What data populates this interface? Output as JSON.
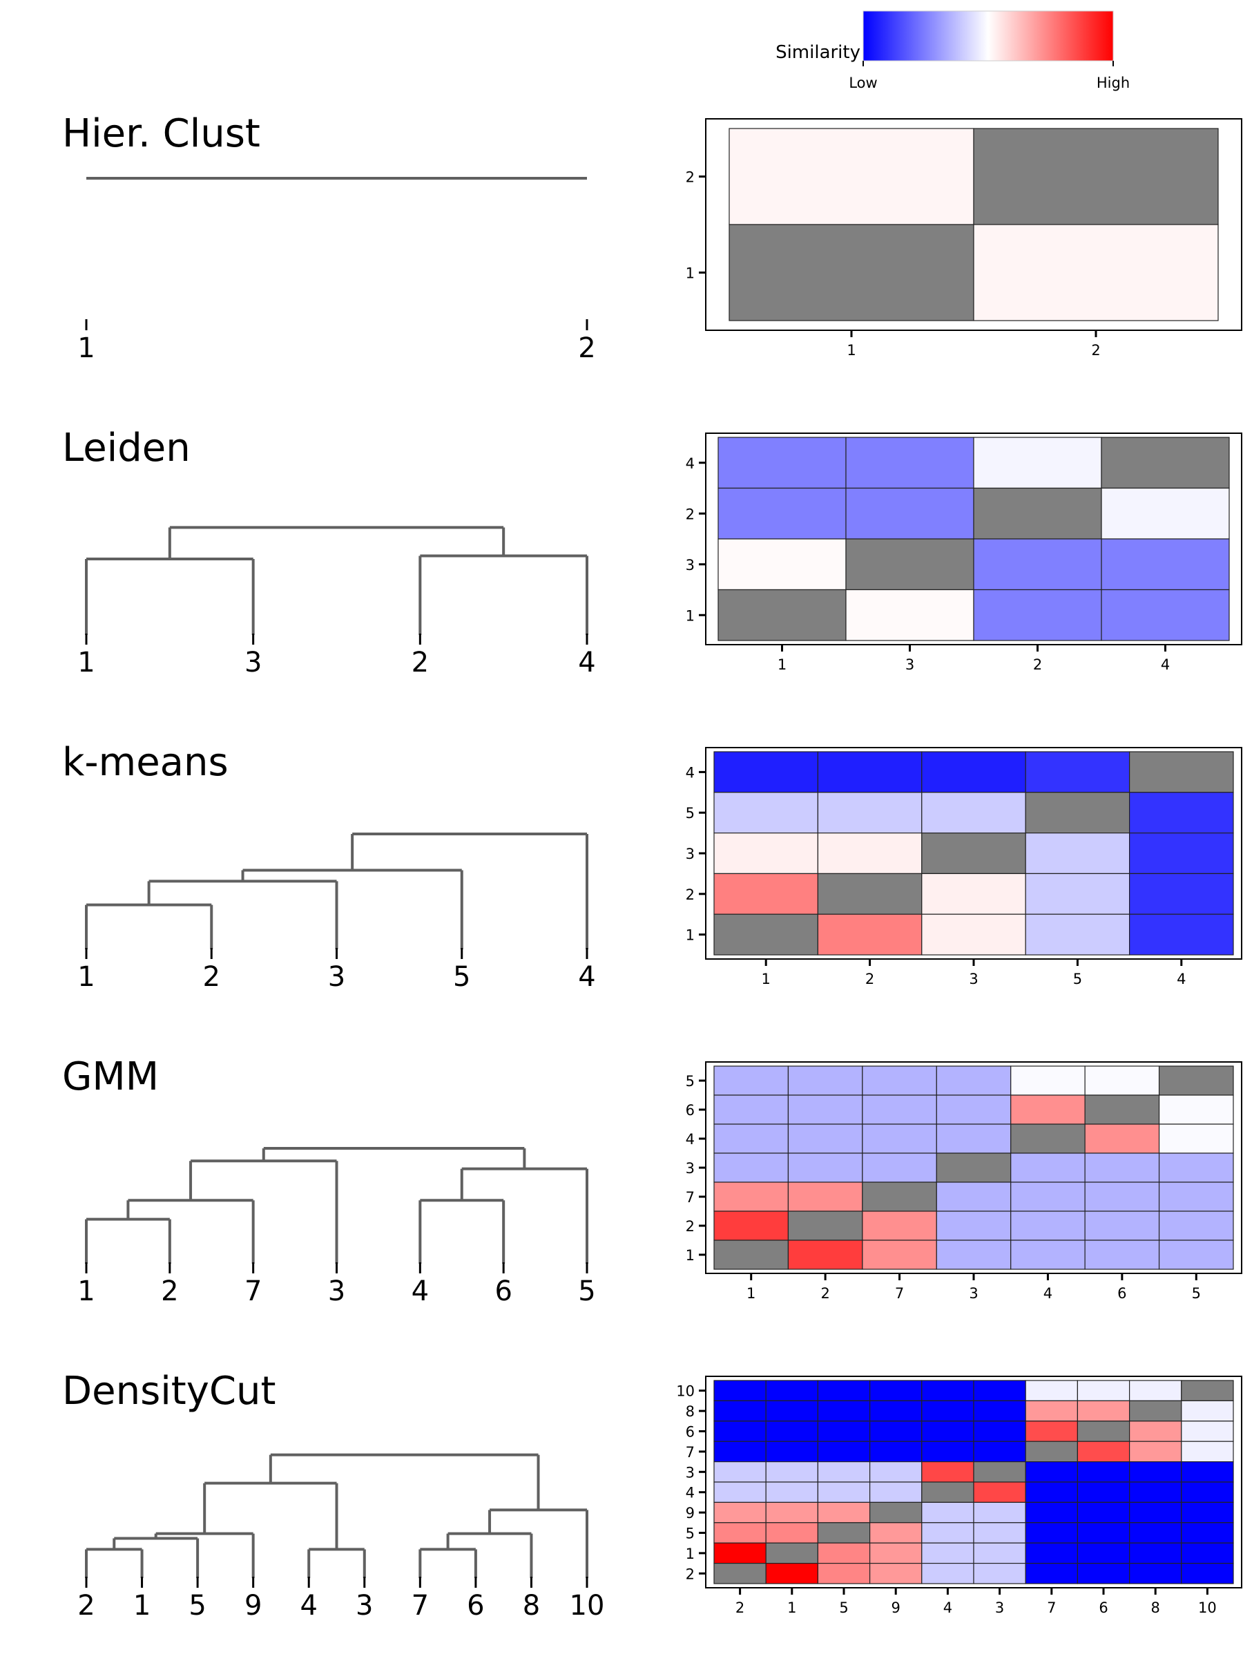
{
  "legend": {
    "title": "Similarity",
    "low_label": "Low",
    "high_label": "High",
    "colors": [
      "#0000ff",
      "#ffffff",
      "#ff0000"
    ]
  },
  "chart_data": [
    {
      "type": "heatmap",
      "title": "Hier. Clust",
      "leaves": [
        "1",
        "2"
      ],
      "dendrogram": [],
      "rows": [
        "2",
        "1"
      ],
      "cols": [
        "1",
        "2"
      ],
      "values": [
        [
          0.52,
          null
        ],
        [
          null,
          0.52
        ]
      ],
      "diagonal_color": "#808080",
      "vrange": [
        0,
        1
      ]
    },
    {
      "type": "heatmap",
      "title": "Leiden",
      "leaves": [
        "1",
        "3",
        "2",
        "4"
      ],
      "dendrogram": [
        [
          0,
          1,
          0.5
        ],
        [
          2,
          3,
          0.52
        ],
        [
          4,
          5,
          0.7
        ]
      ],
      "rows": [
        "4",
        "2",
        "3",
        "1"
      ],
      "cols": [
        "1",
        "3",
        "2",
        "4"
      ],
      "values": [
        [
          0.25,
          0.25,
          0.48,
          null
        ],
        [
          0.25,
          0.25,
          null,
          0.48
        ],
        [
          0.51,
          null,
          0.25,
          0.25
        ],
        [
          null,
          0.51,
          0.25,
          0.25
        ]
      ],
      "diagonal_color": "#808080",
      "vrange": [
        0,
        1
      ]
    },
    {
      "type": "heatmap",
      "title": "k-means",
      "leaves": [
        "1",
        "2",
        "3",
        "5",
        "4"
      ],
      "dendrogram": [
        [
          0,
          1,
          0.3
        ],
        [
          5,
          2,
          0.45
        ],
        [
          6,
          3,
          0.52
        ],
        [
          7,
          4,
          0.75
        ]
      ],
      "rows": [
        "4",
        "5",
        "3",
        "2",
        "1"
      ],
      "cols": [
        "1",
        "2",
        "3",
        "5",
        "4"
      ],
      "values": [
        [
          0.06,
          0.06,
          0.06,
          0.1,
          null
        ],
        [
          0.4,
          0.4,
          0.4,
          null,
          0.1
        ],
        [
          0.53,
          0.53,
          null,
          0.4,
          0.1
        ],
        [
          0.75,
          null,
          0.53,
          0.4,
          0.1
        ],
        [
          null,
          0.75,
          0.53,
          0.4,
          0.1
        ]
      ],
      "diagonal_color": "#808080",
      "vrange": [
        0,
        1
      ]
    },
    {
      "type": "heatmap",
      "title": "GMM",
      "leaves": [
        "1",
        "2",
        "7",
        "3",
        "4",
        "6",
        "5"
      ],
      "dendrogram": [
        [
          0,
          1,
          0.3
        ],
        [
          7,
          2,
          0.42
        ],
        [
          8,
          3,
          0.67
        ],
        [
          4,
          5,
          0.42
        ],
        [
          10,
          6,
          0.62
        ],
        [
          9,
          11,
          0.75
        ]
      ],
      "rows": [
        "5",
        "6",
        "4",
        "3",
        "7",
        "2",
        "1"
      ],
      "cols": [
        "1",
        "2",
        "7",
        "3",
        "4",
        "6",
        "5"
      ],
      "values": [
        [
          0.35,
          0.35,
          0.35,
          0.35,
          0.49,
          0.49,
          null
        ],
        [
          0.35,
          0.35,
          0.35,
          0.35,
          0.72,
          null,
          0.49
        ],
        [
          0.35,
          0.35,
          0.35,
          0.35,
          null,
          0.72,
          0.49
        ],
        [
          0.35,
          0.35,
          0.35,
          null,
          0.35,
          0.35,
          0.35
        ],
        [
          0.72,
          0.72,
          null,
          0.35,
          0.35,
          0.35,
          0.35
        ],
        [
          0.88,
          null,
          0.72,
          0.35,
          0.35,
          0.35,
          0.35
        ],
        [
          null,
          0.88,
          0.72,
          0.35,
          0.35,
          0.35,
          0.35
        ]
      ],
      "diagonal_color": "#808080",
      "vrange": [
        0,
        1
      ]
    },
    {
      "type": "heatmap",
      "title": "DensityCut",
      "leaves": [
        "2",
        "1",
        "5",
        "9",
        "4",
        "3",
        "7",
        "6",
        "8",
        "10"
      ],
      "dendrogram": [
        [
          0,
          1,
          0.2
        ],
        [
          10,
          2,
          0.27
        ],
        [
          11,
          3,
          0.3
        ],
        [
          4,
          5,
          0.2
        ],
        [
          12,
          13,
          0.62
        ],
        [
          6,
          7,
          0.2
        ],
        [
          15,
          8,
          0.3
        ],
        [
          16,
          9,
          0.45
        ],
        [
          14,
          17,
          0.8
        ]
      ],
      "rows": [
        "10",
        "8",
        "6",
        "7",
        "3",
        "4",
        "9",
        "5",
        "1",
        "2"
      ],
      "cols": [
        "2",
        "1",
        "5",
        "9",
        "4",
        "3",
        "7",
        "6",
        "8",
        "10"
      ],
      "values": [
        [
          0.0,
          0.0,
          0.0,
          0.0,
          0.0,
          0.0,
          0.47,
          0.47,
          0.47,
          null
        ],
        [
          0.0,
          0.0,
          0.0,
          0.0,
          0.0,
          0.0,
          0.7,
          0.7,
          null,
          0.47
        ],
        [
          0.0,
          0.0,
          0.0,
          0.0,
          0.0,
          0.0,
          0.85,
          null,
          0.7,
          0.47
        ],
        [
          0.0,
          0.0,
          0.0,
          0.0,
          0.0,
          0.0,
          null,
          0.85,
          0.7,
          0.47
        ],
        [
          0.4,
          0.4,
          0.4,
          0.4,
          0.86,
          null,
          0.0,
          0.0,
          0.0,
          0.0
        ],
        [
          0.4,
          0.4,
          0.4,
          0.4,
          null,
          0.86,
          0.0,
          0.0,
          0.0,
          0.0
        ],
        [
          0.7,
          0.7,
          0.7,
          null,
          0.4,
          0.4,
          0.0,
          0.0,
          0.0,
          0.0
        ],
        [
          0.74,
          0.74,
          null,
          0.7,
          0.4,
          0.4,
          0.0,
          0.0,
          0.0,
          0.0
        ],
        [
          1.0,
          null,
          0.74,
          0.7,
          0.4,
          0.4,
          0.0,
          0.0,
          0.0,
          0.0
        ],
        [
          null,
          1.0,
          0.74,
          0.7,
          0.4,
          0.4,
          0.0,
          0.0,
          0.0,
          0.0
        ]
      ],
      "diagonal_color": "#808080",
      "vrange": [
        0,
        1
      ]
    }
  ]
}
